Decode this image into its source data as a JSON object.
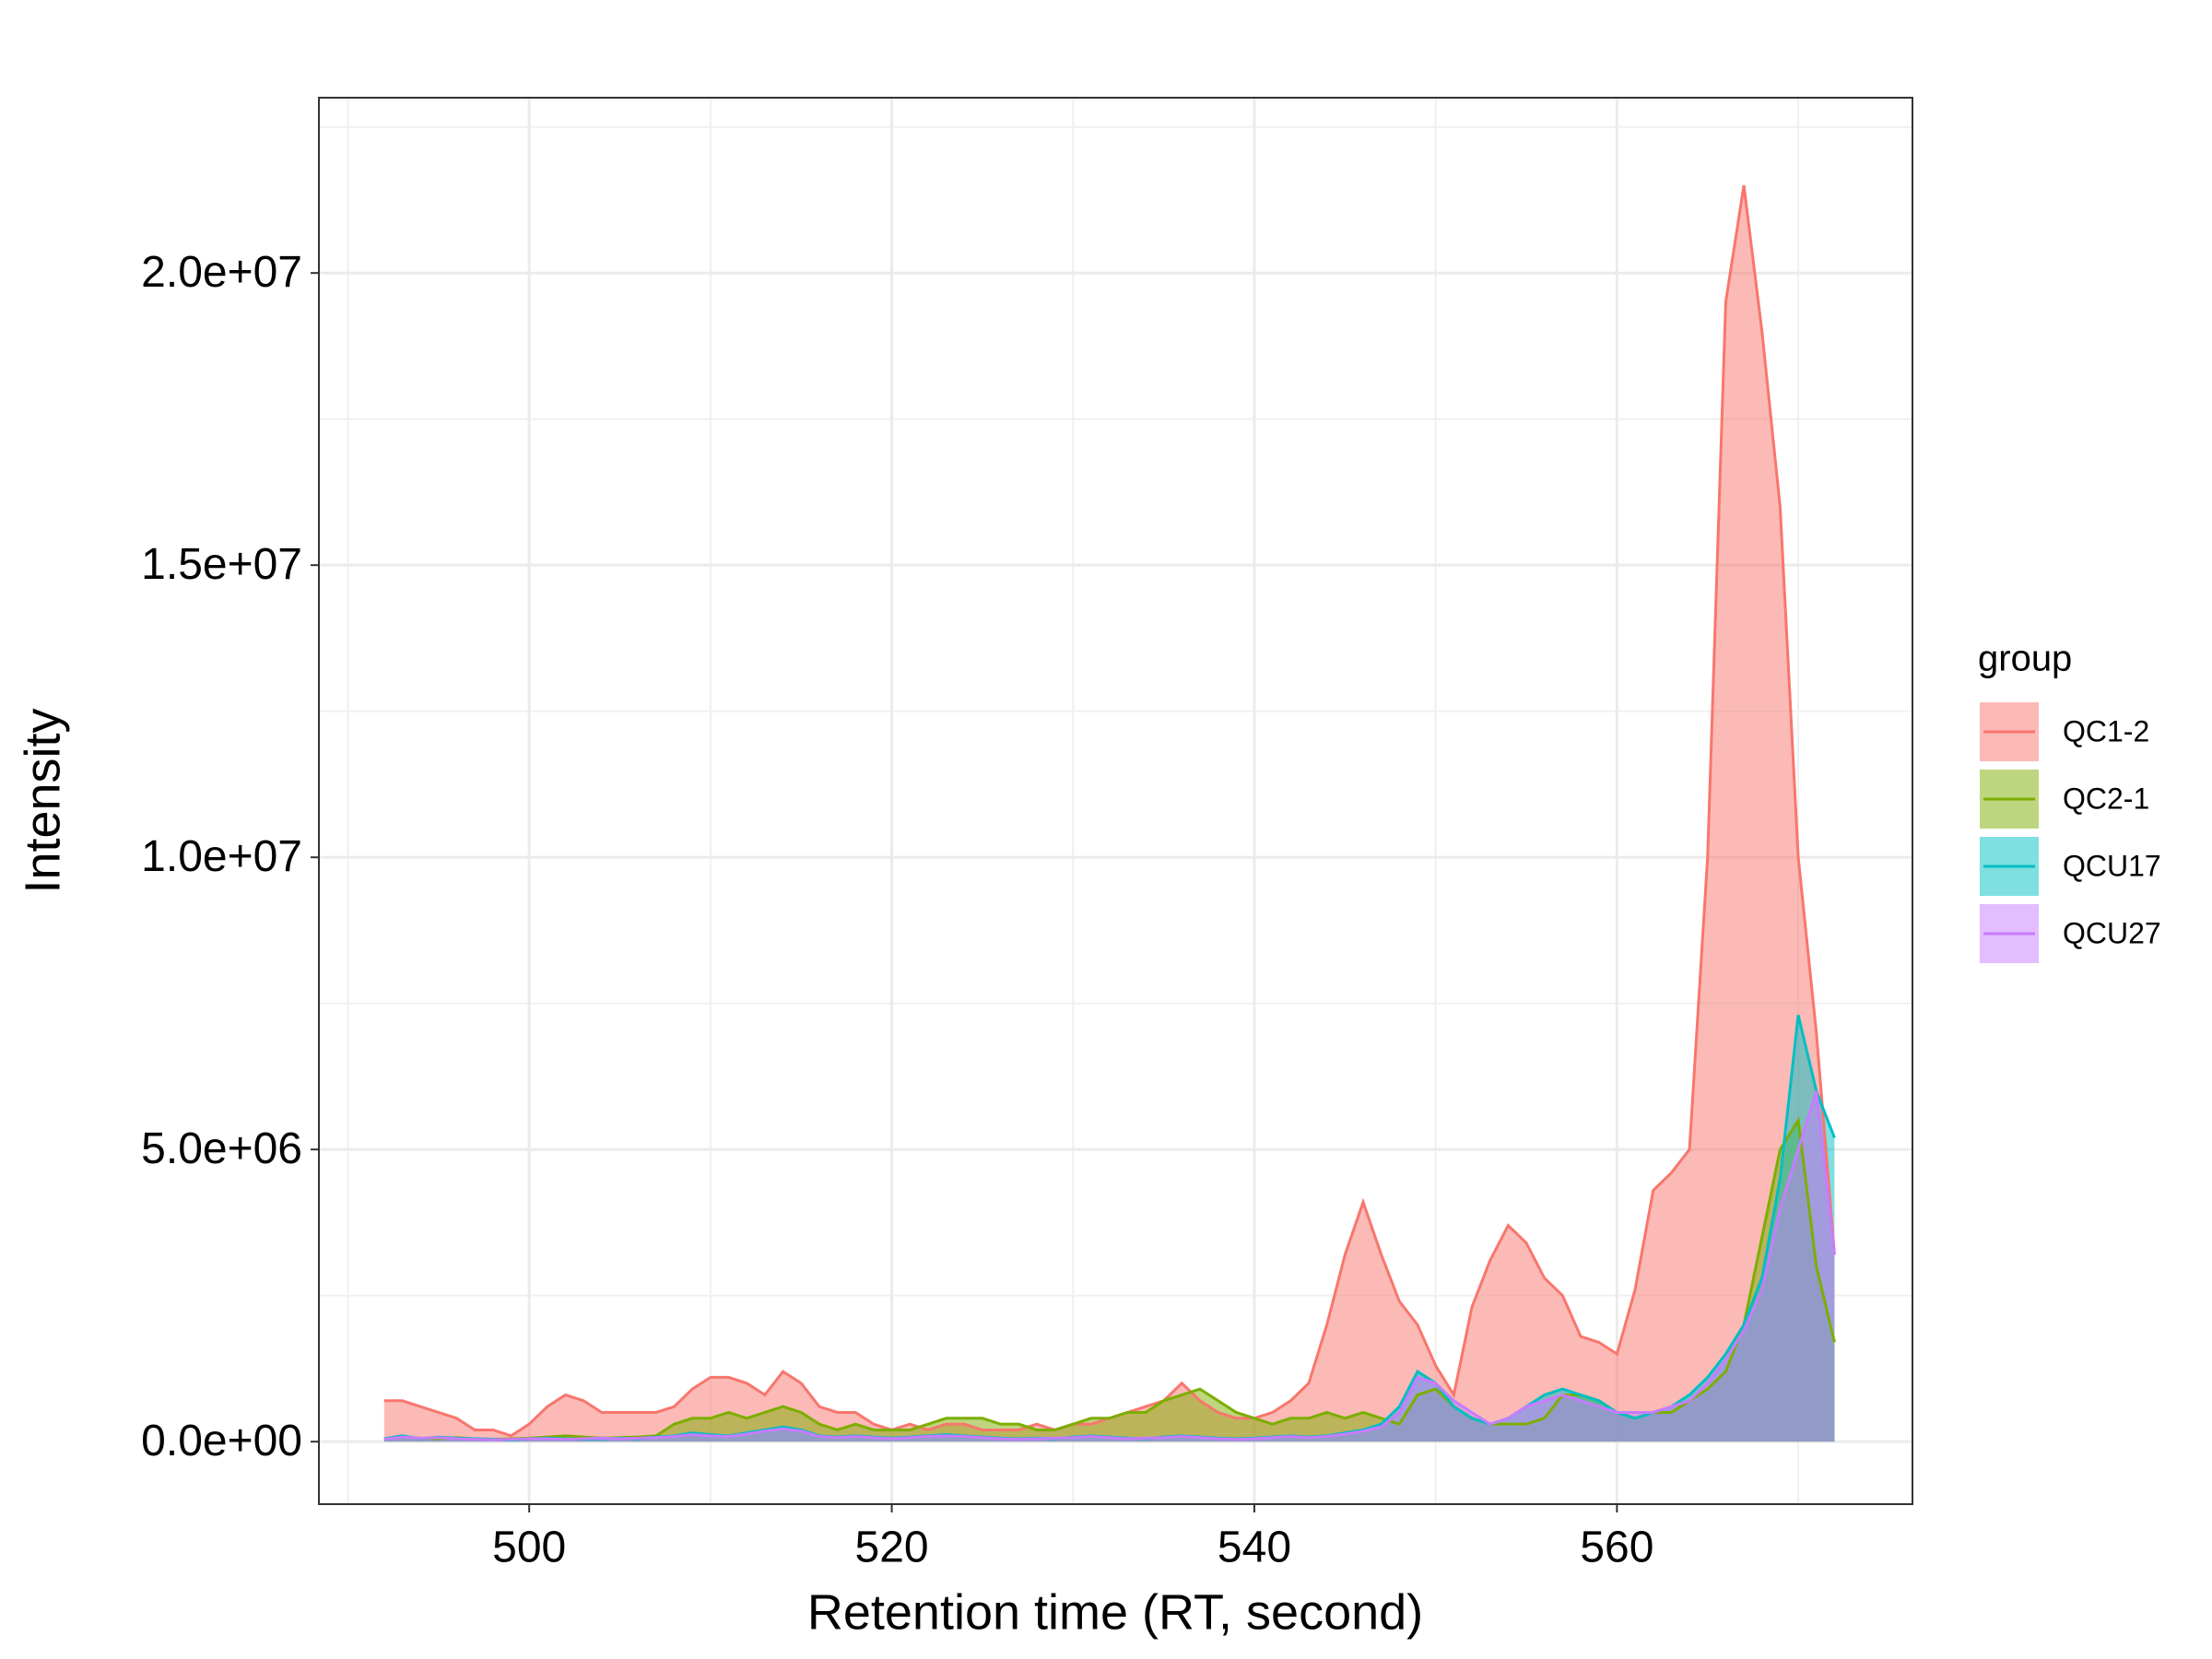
{
  "chart_data": {
    "type": "area",
    "x_label": "Retention time (RT, second)",
    "y_label": "Intensity",
    "legend_title": "group",
    "legend_position": "right",
    "grid": true,
    "minor_grid": true,
    "xlim": [
      488.4,
      576.3
    ],
    "ylim": [
      -1070000,
      23000000
    ],
    "xticks": [
      500,
      520,
      540,
      560
    ],
    "yticks": [
      {
        "value": 0,
        "label": "0.0e+00"
      },
      {
        "value": 5000000,
        "label": "5.0e+06"
      },
      {
        "value": 10000000,
        "label": "1.0e+07"
      },
      {
        "value": 15000000,
        "label": "1.5e+07"
      },
      {
        "value": 20000000,
        "label": "2.0e+07"
      }
    ],
    "x": [
      492,
      493,
      494,
      495,
      496,
      497,
      498,
      499,
      500,
      501,
      502,
      503,
      504,
      505,
      506,
      507,
      508,
      509,
      510,
      511,
      512,
      513,
      514,
      515,
      516,
      517,
      518,
      519,
      520,
      521,
      522,
      523,
      524,
      525,
      526,
      527,
      528,
      529,
      530,
      531,
      532,
      533,
      534,
      535,
      536,
      537,
      538,
      539,
      540,
      541,
      542,
      543,
      544,
      545,
      546,
      547,
      548,
      549,
      550,
      551,
      552,
      553,
      554,
      555,
      556,
      557,
      558,
      559,
      560,
      561,
      562,
      563,
      564,
      565,
      566,
      567,
      568,
      569,
      570,
      571,
      572
    ],
    "series": [
      {
        "name": "QC1-2",
        "color": "#F8766D",
        "values": [
          700000,
          700000,
          600000,
          500000,
          400000,
          200000,
          200000,
          100000,
          300000,
          600000,
          800000,
          700000,
          500000,
          500000,
          500000,
          500000,
          600000,
          900000,
          1100000,
          1100000,
          1000000,
          800000,
          1200000,
          1000000,
          600000,
          500000,
          500000,
          300000,
          200000,
          300000,
          200000,
          300000,
          300000,
          200000,
          200000,
          200000,
          300000,
          200000,
          300000,
          300000,
          400000,
          500000,
          600000,
          700000,
          1000000,
          700000,
          500000,
          400000,
          400000,
          500000,
          700000,
          1000000,
          2000000,
          3200000,
          4100000,
          3200000,
          2400000,
          2000000,
          1300000,
          800000,
          2300000,
          3100000,
          3700000,
          3400000,
          2800000,
          2500000,
          1800000,
          1700000,
          1500000,
          2600000,
          4300000,
          4600000,
          5000000,
          10000000,
          19500000,
          21500000,
          19000000,
          16000000,
          10000000,
          7000000,
          3200000
        ]
      },
      {
        "name": "QC2-1",
        "color": "#7CAE00",
        "values": [
          50000,
          80000,
          60000,
          50000,
          70000,
          50000,
          40000,
          50000,
          60000,
          80000,
          100000,
          80000,
          60000,
          70000,
          80000,
          100000,
          300000,
          400000,
          400000,
          500000,
          400000,
          500000,
          600000,
          500000,
          300000,
          200000,
          300000,
          200000,
          200000,
          200000,
          300000,
          400000,
          400000,
          400000,
          300000,
          300000,
          200000,
          200000,
          300000,
          400000,
          400000,
          500000,
          500000,
          700000,
          800000,
          900000,
          700000,
          500000,
          400000,
          300000,
          400000,
          400000,
          500000,
          400000,
          500000,
          400000,
          300000,
          800000,
          900000,
          600000,
          400000,
          300000,
          300000,
          300000,
          400000,
          800000,
          800000,
          700000,
          500000,
          400000,
          500000,
          500000,
          700000,
          900000,
          1200000,
          2000000,
          3500000,
          5000000,
          5500000,
          3000000,
          1700000
        ]
      },
      {
        "name": "QCU17",
        "color": "#00BFC4",
        "values": [
          50000,
          100000,
          50000,
          80000,
          60000,
          50000,
          40000,
          30000,
          50000,
          60000,
          50000,
          40000,
          50000,
          60000,
          50000,
          80000,
          100000,
          150000,
          120000,
          100000,
          150000,
          200000,
          250000,
          200000,
          100000,
          80000,
          100000,
          80000,
          60000,
          80000,
          100000,
          120000,
          100000,
          80000,
          60000,
          50000,
          60000,
          50000,
          80000,
          100000,
          80000,
          60000,
          50000,
          80000,
          100000,
          80000,
          60000,
          50000,
          60000,
          80000,
          100000,
          80000,
          100000,
          150000,
          200000,
          300000,
          600000,
          1200000,
          1000000,
          600000,
          400000,
          300000,
          400000,
          600000,
          800000,
          900000,
          800000,
          700000,
          500000,
          400000,
          500000,
          600000,
          800000,
          1100000,
          1500000,
          2000000,
          2800000,
          4500000,
          7300000,
          6000000,
          5200000
        ]
      },
      {
        "name": "QCU27",
        "color": "#C77CFF",
        "values": [
          40000,
          80000,
          60000,
          70000,
          50000,
          40000,
          30000,
          40000,
          50000,
          50000,
          40000,
          50000,
          60000,
          50000,
          60000,
          70000,
          90000,
          120000,
          100000,
          90000,
          130000,
          180000,
          220000,
          180000,
          90000,
          70000,
          90000,
          70000,
          50000,
          70000,
          90000,
          100000,
          90000,
          70000,
          50000,
          40000,
          50000,
          60000,
          70000,
          90000,
          70000,
          50000,
          60000,
          70000,
          90000,
          70000,
          50000,
          40000,
          50000,
          70000,
          90000,
          70000,
          90000,
          130000,
          180000,
          250000,
          500000,
          1100000,
          1000000,
          700000,
          500000,
          300000,
          400000,
          600000,
          700000,
          800000,
          700000,
          600000,
          500000,
          500000,
          500000,
          600000,
          700000,
          1000000,
          1400000,
          1900000,
          2600000,
          4000000,
          5000000,
          6000000,
          3200000
        ]
      }
    ]
  }
}
